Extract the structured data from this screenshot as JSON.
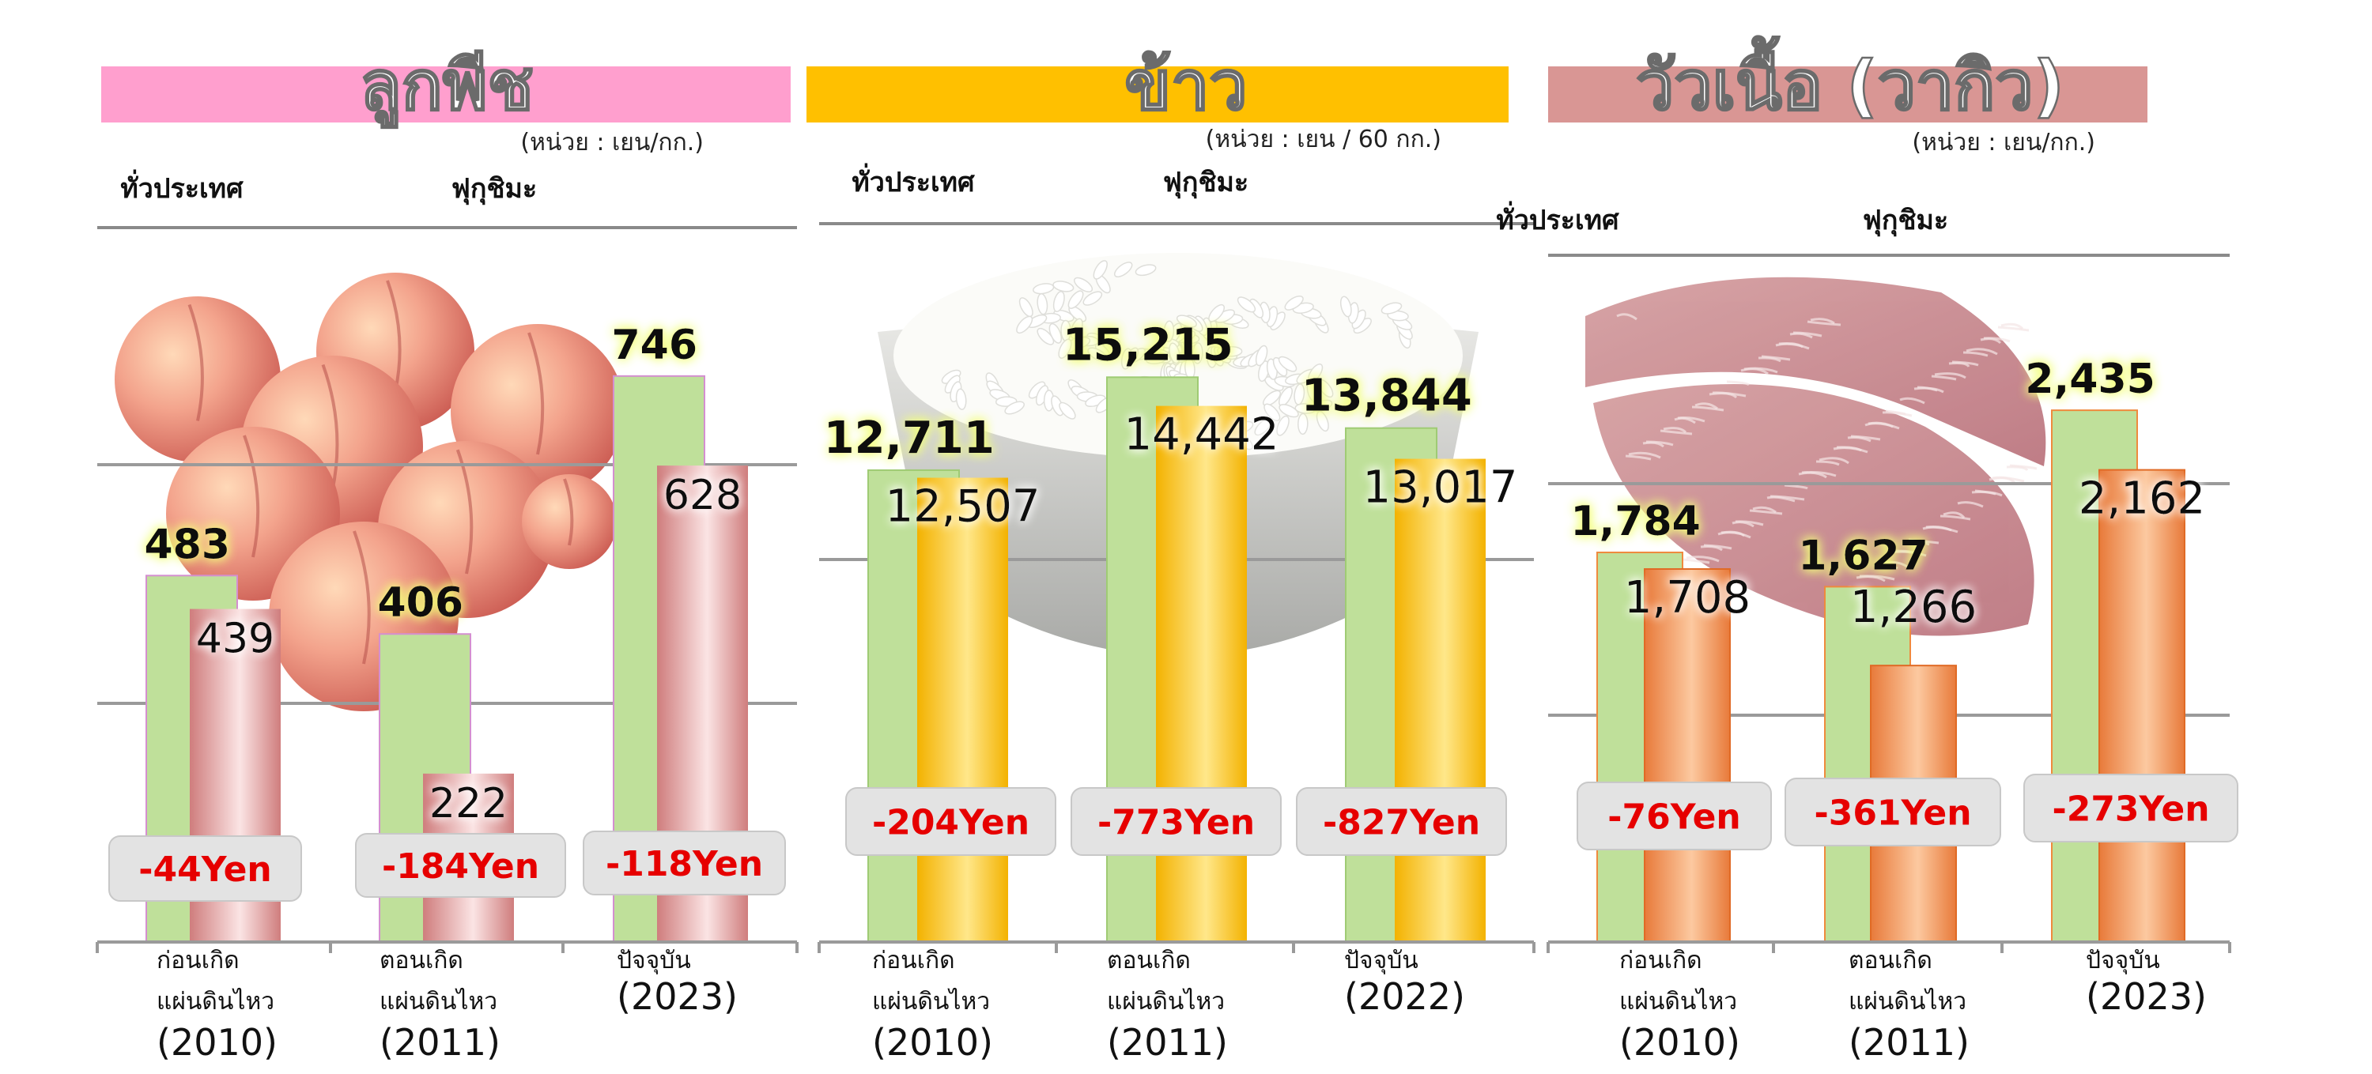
{
  "colors": {
    "national_bar": "#bfe09a",
    "national_bar_edge": "#9fcb74",
    "peach_banner": "#ff9fce",
    "rice_banner": "#ffc000",
    "beef_banner": "#d99694",
    "peach_fukushima": [
      "#cf7d7d",
      "#fbe4e4"
    ],
    "rice_fukushima": [
      "#f3b200",
      "#ffe78a"
    ],
    "beef_fukushima": [
      "#e87a3a",
      "#fcc9a0"
    ],
    "diff_text": "#e60000",
    "diff_box": "#e3e3e3",
    "axis": "#9a9a9a"
  },
  "chart_data": [
    {
      "type": "bar",
      "title": "ลูกพีช",
      "unit": "(หน่วย : เยน/กก.)",
      "legend": [
        "ทั่วประเทศ",
        "ฟุกุชิมะ"
      ],
      "categories": [
        [
          "ก่อนเกิด",
          "แผ่นดินไหว",
          "(2010)"
        ],
        [
          "ตอนเกิด",
          "แผ่นดินไหว",
          "(2011)"
        ],
        [
          "ปัจจุบัน",
          "(2023)"
        ]
      ],
      "series": [
        {
          "name": "ทั่วประเทศ",
          "values": [
            483,
            406,
            746
          ],
          "labels": [
            "483",
            "406",
            "746"
          ]
        },
        {
          "name": "ฟุกุชิมะ",
          "values": [
            439,
            222,
            628
          ],
          "labels": [
            "439",
            "222",
            "628"
          ]
        }
      ],
      "differences": [
        "-44Yen",
        "-184Yen",
        "-118Yen"
      ],
      "ylim": [
        0,
        900
      ],
      "grid": true
    },
    {
      "type": "bar",
      "title": "ข้าว",
      "unit": "(หน่วย : เยน / 60 กก.)",
      "legend": [
        "ทั่วประเทศ",
        "ฟุกุชิมะ"
      ],
      "categories": [
        [
          "ก่อนเกิด",
          "แผ่นดินไหว",
          "(2010)"
        ],
        [
          "ตอนเกิด",
          "แผ่นดินไหว",
          "(2011)"
        ],
        [
          "ปัจจุบัน",
          "(2022)"
        ]
      ],
      "series": [
        {
          "name": "ทั่วประเทศ",
          "values": [
            12711,
            15215,
            13844
          ],
          "labels": [
            "12,711",
            "15,215",
            "13,844"
          ]
        },
        {
          "name": "ฟุกุชิมะ",
          "values": [
            12507,
            14442,
            13017
          ],
          "labels": [
            "12,507",
            "14,442",
            "13,017"
          ]
        }
      ],
      "differences": [
        "-204Yen",
        "-773Yen",
        "-827Yen"
      ],
      "ylim": [
        0,
        18500
      ],
      "grid": true
    },
    {
      "type": "bar",
      "title": "วัวเนื้อ (วากิว)",
      "unit": "(หน่วย : เยน/กก.)",
      "legend": [
        "ทั่วประเทศ",
        "ฟุกุชิมะ"
      ],
      "categories": [
        [
          "ก่อนเกิด",
          "แผ่นดินไหว",
          "(2010)"
        ],
        [
          "ตอนเกิด",
          "แผ่นดินไหว",
          "(2011)"
        ],
        [
          "ปัจจุบัน",
          "(2023)"
        ]
      ],
      "series": [
        {
          "name": "ทั่วประเทศ",
          "values": [
            1784,
            1627,
            2435
          ],
          "labels": [
            "1,784",
            "1,627",
            "2,435"
          ]
        },
        {
          "name": "ฟุกุชิมะ",
          "values": [
            1708,
            1266,
            2162
          ],
          "labels": [
            "1,708",
            "1,266",
            "2,162"
          ]
        }
      ],
      "differences": [
        "-76Yen",
        "-361Yen",
        "-273Yen"
      ],
      "ylim": [
        0,
        3000
      ],
      "grid": true
    }
  ]
}
